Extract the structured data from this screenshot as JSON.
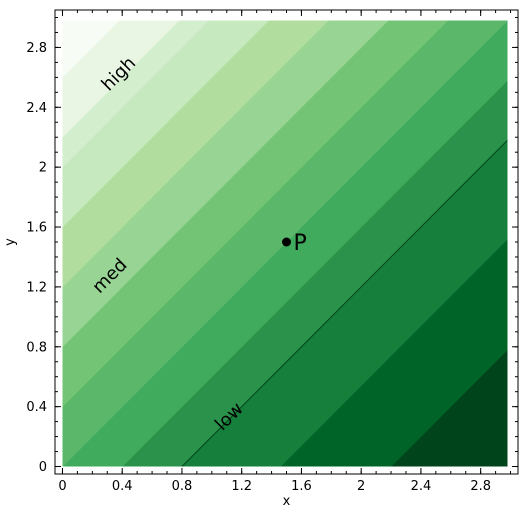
{
  "chart_data": {
    "type": "contour",
    "title": "",
    "xlabel": "x",
    "ylabel": "y",
    "xlim": [
      -0.05,
      3.05
    ],
    "ylim": [
      -0.05,
      3.05
    ],
    "x_ticks": [
      "0",
      "0.4",
      "0.8",
      "1.2",
      "1.6",
      "2",
      "2.4",
      "2.8"
    ],
    "y_ticks": [
      "0",
      "0.4",
      "0.8",
      "1.2",
      "1.6",
      "2",
      "2.4",
      "2.8"
    ],
    "x_tick_values": [
      0,
      0.4,
      0.8,
      1.2,
      1.6,
      2.0,
      2.4,
      2.8
    ],
    "y_tick_values": [
      0,
      0.4,
      0.8,
      1.2,
      1.6,
      2.0,
      2.4,
      2.8
    ],
    "field": "y - x",
    "domain": [
      0,
      2.98
    ],
    "levels": [
      -3.0,
      -2.2,
      -1.46,
      -0.8,
      -0.4,
      0.0,
      0.4,
      0.8,
      1.2,
      1.6,
      2.0,
      2.2,
      2.6,
      3.0
    ],
    "colormap": "Greens (reversed: high = light, low = dark)",
    "fill_colors": [
      "#00441b",
      "#006428",
      "#157f3b",
      "#2a924a",
      "#41ab5d",
      "#5bb86a",
      "#74c476",
      "#98d594",
      "#b1de9e",
      "#c7e9c0",
      "#d3eecd",
      "#e8f6e3",
      "#f7fcf5"
    ],
    "contour_line": {
      "level": -0.8,
      "color": "#00441b"
    },
    "level_labels": [
      {
        "text": "high",
        "x": 0.38,
        "y": 2.62,
        "rotation": -45
      },
      {
        "text": "med",
        "x": 0.32,
        "y": 1.27,
        "rotation": -45
      },
      {
        "text": "low",
        "x": 1.12,
        "y": 0.33,
        "rotation": -45
      }
    ],
    "points": [
      {
        "label": "P",
        "x": 1.5,
        "y": 1.5
      }
    ]
  }
}
